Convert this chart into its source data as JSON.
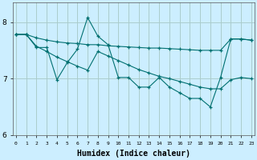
{
  "xlabel": "Humidex (Indice chaleur)",
  "bg_color": "#cceeff",
  "grid_color": "#aacccc",
  "line_color": "#007070",
  "ylim": [
    6.0,
    8.35
  ],
  "xlim": [
    -0.3,
    23.3
  ],
  "yticks": [
    6,
    7,
    8
  ],
  "xticks": [
    0,
    1,
    2,
    3,
    4,
    5,
    6,
    7,
    8,
    9,
    10,
    11,
    12,
    13,
    14,
    15,
    16,
    17,
    18,
    19,
    20,
    21,
    22,
    23
  ],
  "line1_x": [
    0,
    1,
    2,
    3,
    4,
    5,
    6,
    7,
    8,
    9,
    10,
    11,
    12,
    13,
    14,
    15,
    16,
    17,
    18,
    19,
    20,
    21,
    22,
    23
  ],
  "line1_y": [
    7.78,
    7.78,
    7.72,
    7.68,
    7.65,
    7.63,
    7.62,
    7.6,
    7.6,
    7.58,
    7.57,
    7.56,
    7.55,
    7.54,
    7.54,
    7.53,
    7.52,
    7.51,
    7.5,
    7.5,
    7.5,
    7.7,
    7.7,
    7.68
  ],
  "line2_x": [
    0,
    1,
    2,
    3,
    4,
    5,
    6,
    7,
    8,
    9,
    10,
    11,
    12,
    13,
    14,
    15,
    16,
    17,
    18,
    19,
    20,
    21,
    22,
    23
  ],
  "line2_y": [
    7.78,
    7.78,
    7.55,
    7.55,
    6.98,
    7.28,
    7.52,
    8.08,
    7.75,
    7.6,
    7.02,
    7.02,
    6.85,
    6.85,
    7.02,
    6.85,
    6.75,
    6.65,
    6.65,
    6.5,
    7.02,
    7.7,
    7.7,
    7.68
  ],
  "line3_x": [
    0,
    1,
    2,
    3,
    4,
    5,
    6,
    7,
    8,
    9,
    10,
    11,
    12,
    13,
    14,
    15,
    16,
    17,
    18,
    19,
    20,
    21,
    22,
    23
  ],
  "line3_y": [
    7.78,
    7.78,
    7.57,
    7.48,
    7.38,
    7.3,
    7.22,
    7.15,
    7.48,
    7.4,
    7.32,
    7.24,
    7.16,
    7.1,
    7.04,
    7.0,
    6.95,
    6.9,
    6.85,
    6.82,
    6.82,
    6.98,
    7.02,
    7.0
  ]
}
